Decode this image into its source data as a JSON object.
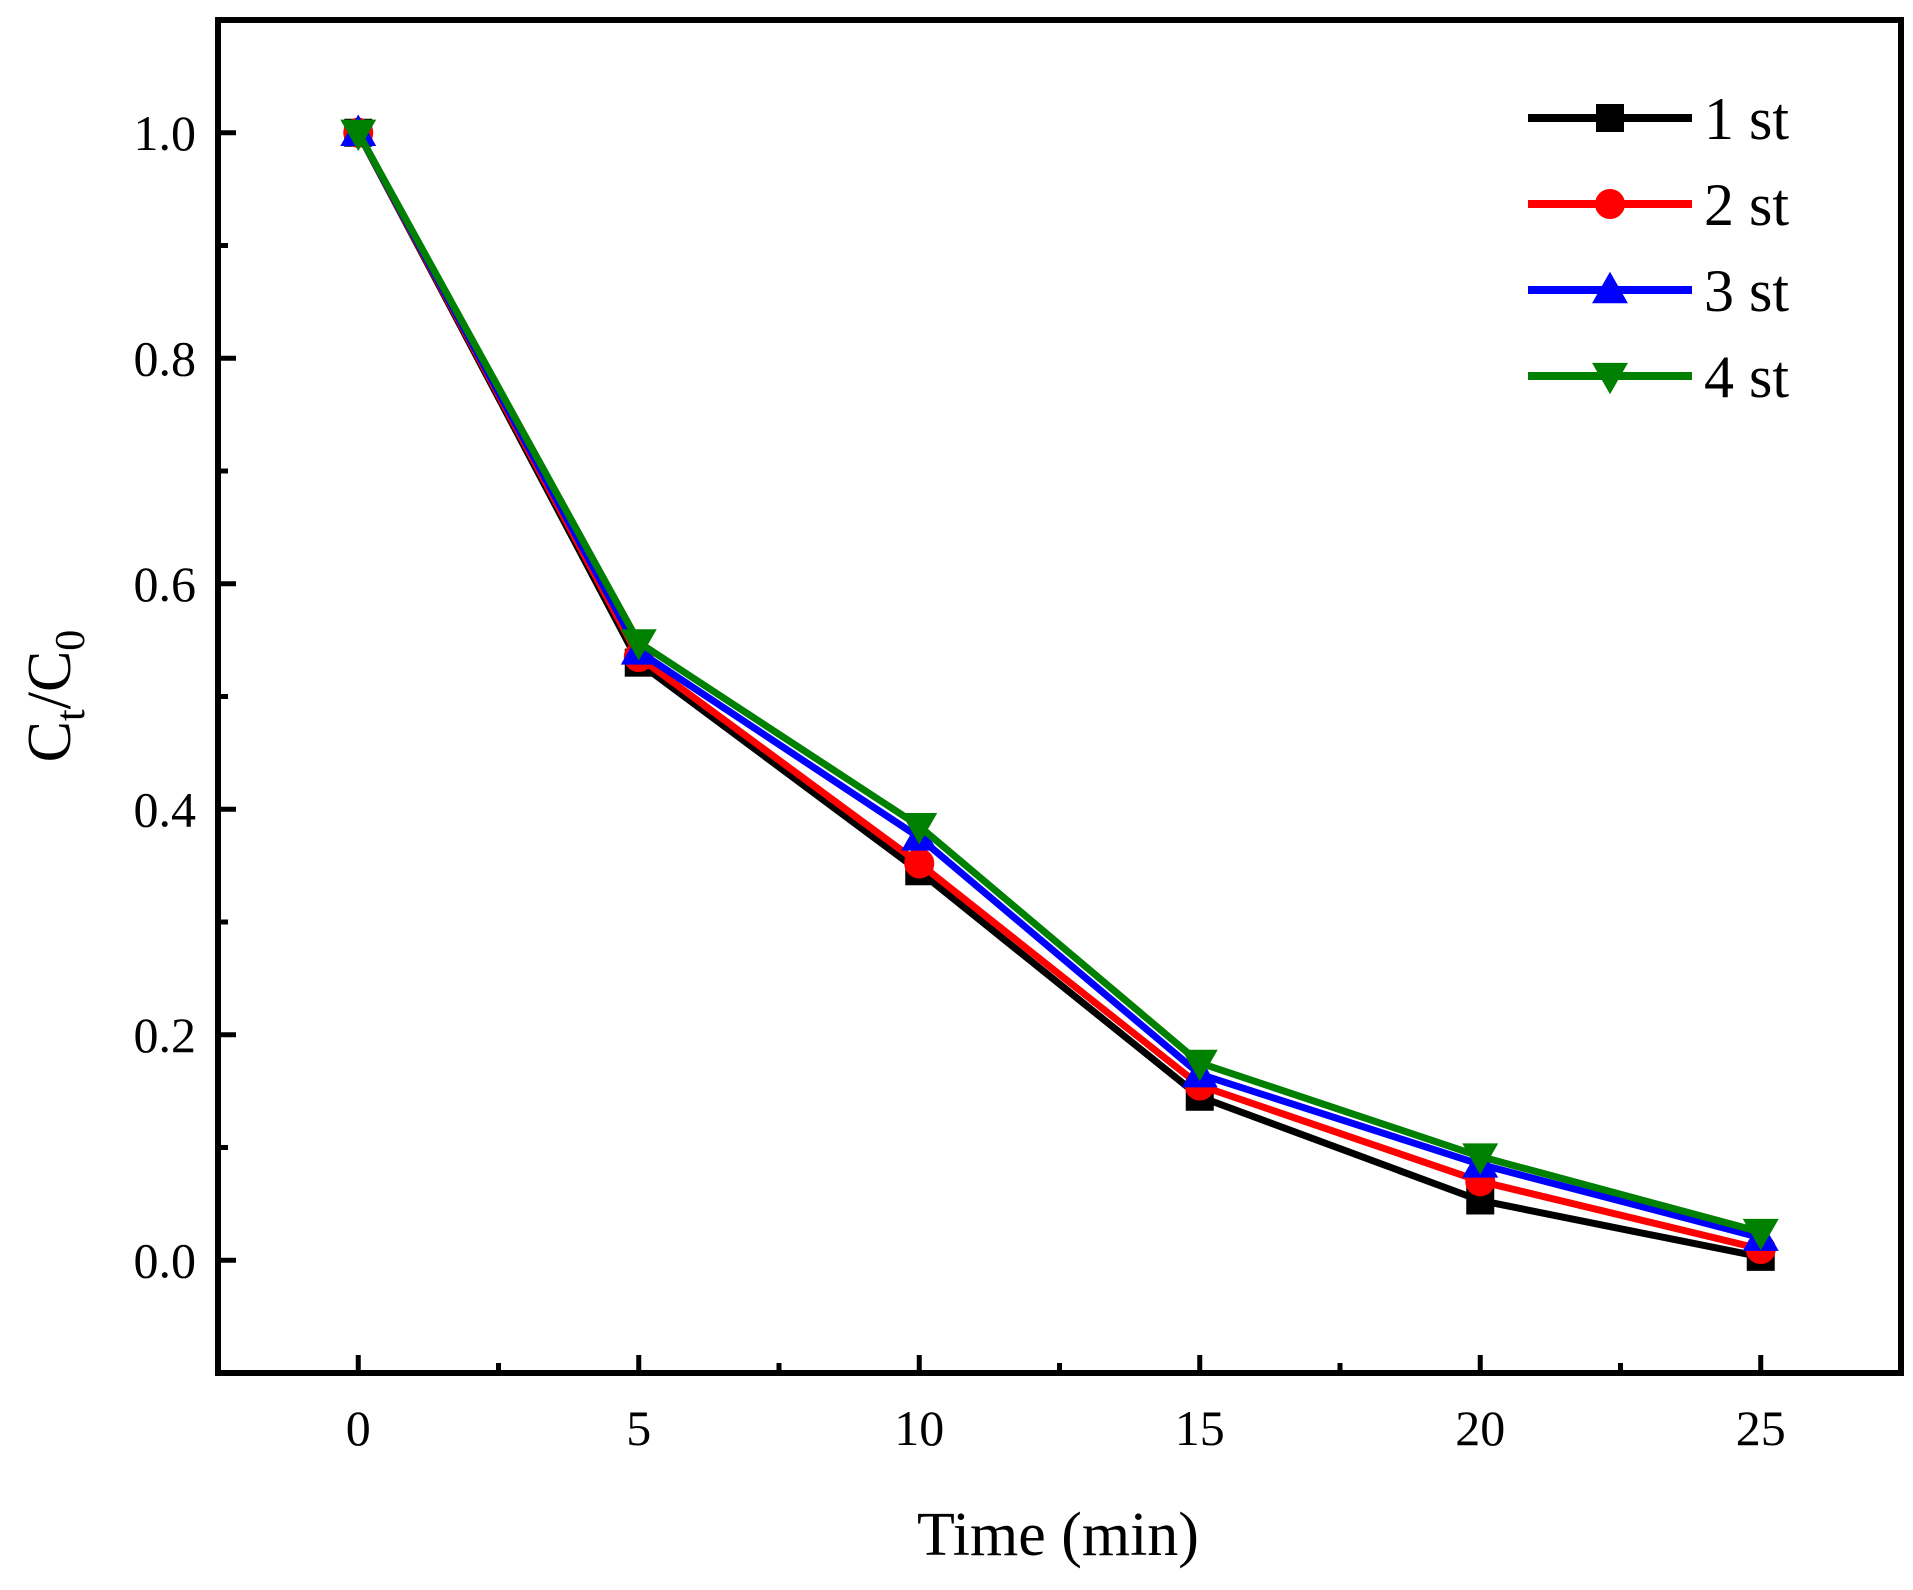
{
  "chart_data": {
    "type": "line",
    "title": "",
    "xlabel": "Time (min)",
    "ylabel": {
      "base": "C",
      "sub1": "t",
      "slash": "/",
      "base2": "C",
      "sub2": "0"
    },
    "x": [
      0,
      5,
      10,
      15,
      20,
      25
    ],
    "xlim": [
      -2.5,
      27.5
    ],
    "ylim": [
      -0.1,
      1.1
    ],
    "xticks": [
      0,
      5,
      10,
      15,
      20,
      25
    ],
    "xtick_labels": [
      "0",
      "5",
      "10",
      "15",
      "20",
      "25"
    ],
    "yticks": [
      0.0,
      0.2,
      0.4,
      0.6,
      0.8,
      1.0
    ],
    "ytick_labels": [
      "0.0",
      "0.2",
      "0.4",
      "0.6",
      "0.8",
      "1.0"
    ],
    "legend_position": "top-right",
    "grid": false,
    "series": [
      {
        "name": "1 st",
        "color": "#000000",
        "marker": "square",
        "values": [
          1.0,
          0.53,
          0.345,
          0.145,
          0.053,
          0.003
        ]
      },
      {
        "name": "2 st",
        "color": "#ff0000",
        "marker": "circle",
        "values": [
          1.0,
          0.535,
          0.352,
          0.155,
          0.07,
          0.01
        ]
      },
      {
        "name": "3 st",
        "color": "#0000ff",
        "marker": "triangle-up",
        "values": [
          1.0,
          0.54,
          0.375,
          0.165,
          0.085,
          0.02
        ]
      },
      {
        "name": "4 st",
        "color": "#008000",
        "marker": "triangle-down",
        "values": [
          1.0,
          0.548,
          0.385,
          0.175,
          0.092,
          0.025
        ]
      }
    ]
  }
}
